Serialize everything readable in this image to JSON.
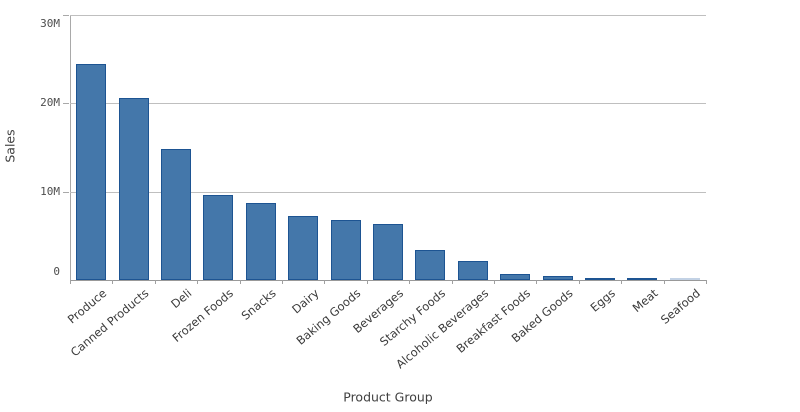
{
  "chart_data": {
    "type": "bar",
    "title": "",
    "xlabel": "Product Group",
    "ylabel": "Sales",
    "ylim": [
      0,
      30000000
    ],
    "yticks": [
      {
        "value": 0,
        "label": "0"
      },
      {
        "value": 10000000,
        "label": "10M"
      },
      {
        "value": 20000000,
        "label": "20M"
      },
      {
        "value": 30000000,
        "label": "30M"
      }
    ],
    "grid": true,
    "legend_position": "none",
    "categories": [
      "Produce",
      "Canned Products",
      "Deli",
      "Frozen Foods",
      "Snacks",
      "Dairy",
      "Baking Goods",
      "Beverages",
      "Starchy Foods",
      "Alcoholic Beverages",
      "Breakfast Foods",
      "Baked Goods",
      "Eggs",
      "Meat",
      "Seafood"
    ],
    "values": [
      24400000,
      20600000,
      14800000,
      9600000,
      8700000,
      7200000,
      6800000,
      6300000,
      3400000,
      2200000,
      700000,
      450000,
      250000,
      150000,
      100000
    ],
    "colors": {
      "bar_fill": "#4477aa",
      "bar_border": "#1d5492",
      "tiny_bar_fill": "#c3d2e5",
      "gridline": "#bfbfbf",
      "axis_line": "#999999",
      "tick_text": "#4d4d4d",
      "category_text": "#3a3a3a",
      "axis_title_text": "#404040"
    }
  }
}
